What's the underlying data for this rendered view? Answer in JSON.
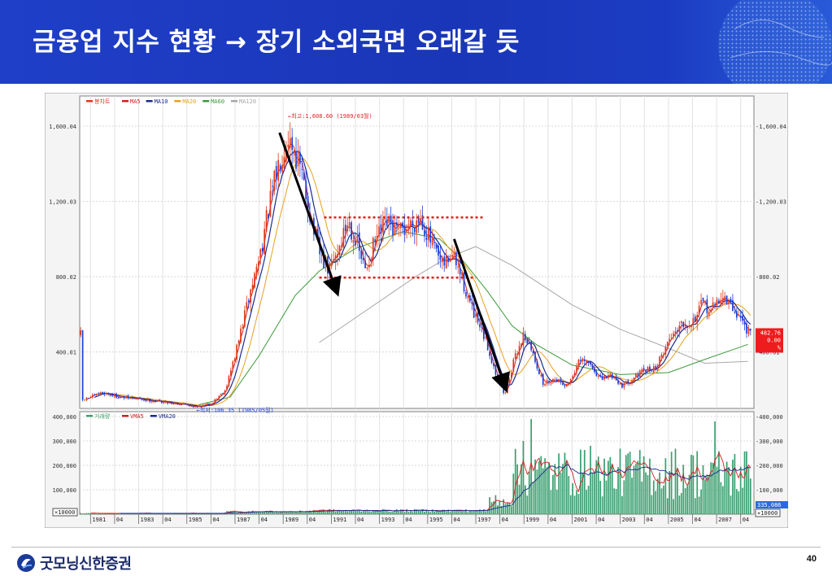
{
  "slide": {
    "title": "금융업 지수 현황 → 장기 소외국면 오래갈 듯",
    "page_number": "40",
    "logo_text": "굿모닝신한증권"
  },
  "colors": {
    "banner": "#1b3cc2",
    "candle_up": "#e03a1e",
    "candle_down": "#1c3fd8",
    "ma5": "#d21f1f",
    "ma10": "#1a2a8c",
    "ma20": "#e8a020",
    "ma60": "#3a9a3a",
    "ma120": "#a8a8a8",
    "volume": "#3aa070",
    "vma5": "#d21f1f",
    "vma20": "#1a2a8c",
    "annotation": "#e02020",
    "arrow": "#000000"
  },
  "chart_data": [
    {
      "type": "candlestick",
      "legend": [
        "봉차트",
        "MA5",
        "MA10",
        "MA20",
        "MA60",
        "MA120"
      ],
      "y_ticks": [
        "1,600.04",
        "1,200.03",
        "800.02",
        "400.01"
      ],
      "y_tick_values": [
        1600.04,
        1200.03,
        800.02,
        400.01
      ],
      "ylim": [
        100,
        1760
      ],
      "xlim": [
        1980.55,
        2008.55
      ],
      "annotations": {
        "high": {
          "label": "←최고:1,608.60 (1989/03월)",
          "x": 1989.2,
          "y": 1608.6
        },
        "low": {
          "label": "←최저:106.35 (1985/05월)",
          "x": 1985.4,
          "y": 106.35
        },
        "current_box": [
          "482.76",
          "0.00",
          "%"
        ]
      },
      "band_lines": [
        {
          "x1": 1990.7,
          "x2": 1997.3,
          "y": 1115
        },
        {
          "x1": 1990.5,
          "x2": 1997.0,
          "y": 795
        }
      ],
      "trend_arrows": [
        {
          "x1": 1988.85,
          "x2": 1991.2,
          "y1": 1565,
          "y2": 730
        },
        {
          "x1": 1996.1,
          "x2": 1998.2,
          "y1": 1000,
          "y2": 220
        }
      ],
      "ma120_points": [
        [
          1990.5,
          450
        ],
        [
          1994.5,
          800
        ],
        [
          1995.8,
          900
        ],
        [
          1997.0,
          960
        ],
        [
          1998.5,
          860
        ],
        [
          2001.0,
          650
        ],
        [
          2003.0,
          520
        ],
        [
          2005.0,
          420
        ],
        [
          2006.5,
          340
        ],
        [
          2008.3,
          350
        ]
      ],
      "ma60_points": [
        [
          1985.5,
          120
        ],
        [
          1986.8,
          160
        ],
        [
          1988.0,
          380
        ],
        [
          1989.5,
          700
        ],
        [
          1990.5,
          830
        ],
        [
          1992.0,
          950
        ],
        [
          1994.0,
          1040
        ],
        [
          1995.5,
          1000
        ],
        [
          1996.5,
          880
        ],
        [
          1997.5,
          720
        ],
        [
          1998.5,
          540
        ],
        [
          1999.5,
          440
        ],
        [
          2001.0,
          330
        ],
        [
          2003.0,
          280
        ],
        [
          2005.0,
          290
        ],
        [
          2006.5,
          360
        ],
        [
          2008.3,
          440
        ]
      ]
    },
    {
      "type": "bar",
      "legend": [
        "거래량",
        "VMA5",
        "VMA20"
      ],
      "y_ticks": [
        "400,000",
        "300,000",
        "200,000",
        "100,000"
      ],
      "y_tick_values": [
        400000,
        300000,
        200000,
        100000
      ],
      "ylim": [
        0,
        420000
      ],
      "unit_label": "×10000",
      "current_value": "335,086",
      "x_labels": [
        "1981",
        "04",
        "1983",
        "04",
        "1985",
        "04",
        "1987",
        "04",
        "1989",
        "04",
        "1991",
        "04",
        "1993",
        "04",
        "1995",
        "04",
        "1997",
        "04",
        "1999",
        "04",
        "2001",
        "04",
        "2003",
        "04",
        "2005",
        "04",
        "2007",
        "04"
      ]
    }
  ]
}
